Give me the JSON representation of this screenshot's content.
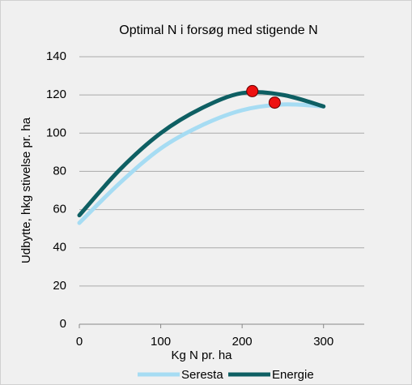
{
  "chart_data": {
    "type": "line",
    "title": "Optimal N i forsøg med stigende N",
    "x_label": "Kg N pr. ha",
    "y_label": "Udbytte, hkg stivelse pr. ha",
    "x": [
      0,
      50,
      100,
      150,
      200,
      250,
      300
    ],
    "series": [
      {
        "name": "Seresta",
        "color": "#a6dcf3",
        "values": [
          53,
          74,
          92,
          104,
          112,
          115,
          114
        ]
      },
      {
        "name": "Energie",
        "color": "#0e5f63",
        "values": [
          57,
          81,
          100,
          113,
          121,
          120,
          114
        ]
      }
    ],
    "markers": {
      "x": [
        212.5,
        240
      ],
      "values": [
        122,
        116
      ],
      "color": "#ee1111"
    },
    "xlim": [
      0,
      350
    ],
    "xticks": [
      0,
      100,
      200,
      300
    ],
    "ylim": [
      0,
      140
    ],
    "yticks": [
      0,
      20,
      40,
      60,
      80,
      100,
      120,
      140
    ],
    "grid": true,
    "legend": "bottom"
  }
}
